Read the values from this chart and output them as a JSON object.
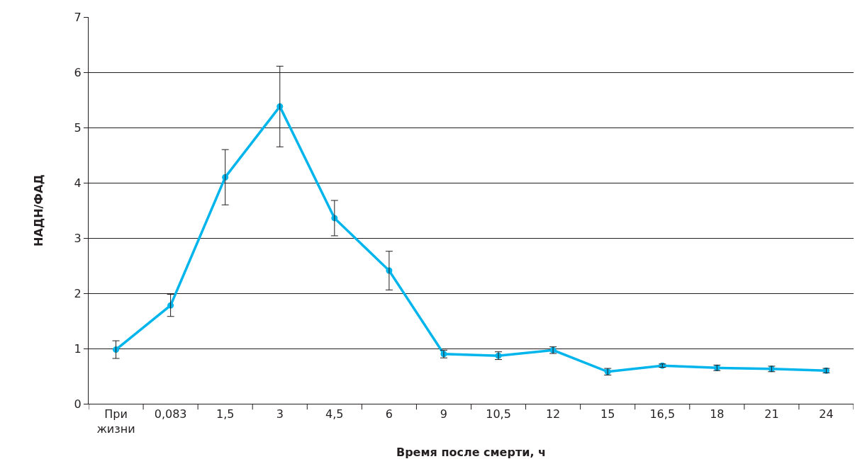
{
  "chart_data": {
    "type": "line",
    "xlabel": "Время после смерти, ч",
    "ylabel": "НАДН/ФАД",
    "categories": [
      "При жизни",
      "0,083",
      "1,5",
      "3",
      "4,5",
      "6",
      "9",
      "10,5",
      "12",
      "15",
      "16,5",
      "18",
      "21",
      "24"
    ],
    "series": [
      {
        "color": "#00b4ec",
        "values": [
          0.98,
          1.78,
          4.1,
          5.38,
          3.36,
          2.41,
          0.9,
          0.87,
          0.97,
          0.58,
          0.69,
          0.65,
          0.63,
          0.6
        ],
        "errors": [
          0.16,
          0.2,
          0.5,
          0.73,
          0.32,
          0.35,
          0.07,
          0.07,
          0.06,
          0.06,
          0.03,
          0.05,
          0.05,
          0.04
        ]
      }
    ],
    "ylim": [
      0,
      7
    ],
    "yticks": [
      0,
      1,
      2,
      3,
      4,
      5,
      6,
      7
    ],
    "grid": "y",
    "marker": "circle",
    "line_style": "solid"
  }
}
